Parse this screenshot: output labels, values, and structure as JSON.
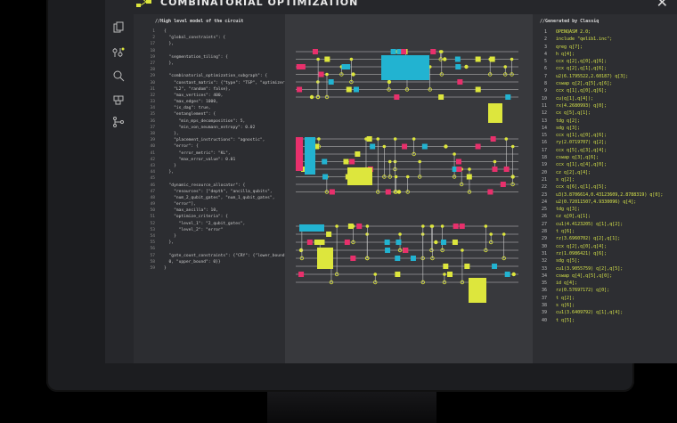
{
  "app": {
    "title": "COMBINATORIAL OPTIMIZATION",
    "close_label": "✕"
  },
  "rail": {
    "icons": [
      "copy-icon",
      "settings-sliders-icon",
      "search-icon",
      "puzzle-icon",
      "branch-icon"
    ]
  },
  "left_pane": {
    "header": "//High level model of the circuit",
    "lines": [
      {
        "n": "1",
        "t": "{"
      },
      {
        "n": "2",
        "t": "  \"global_constraints\": {"
      },
      {
        "n": "17",
        "t": "  },"
      },
      {
        "n": "18",
        "t": ""
      },
      {
        "n": "19",
        "t": "  \"segmentation_tiling\": {"
      },
      {
        "n": "27",
        "t": "  },"
      },
      {
        "n": "28",
        "t": ""
      },
      {
        "n": "29",
        "t": "  \"combinatorial_optimization_subgraph\": {"
      },
      {
        "n": "30",
        "t": "    \"constant_matrix\": {\"type\": \"TSP\", \"optimizer\":"
      },
      {
        "n": "31",
        "t": "    \"L2\", \"random\": false},"
      },
      {
        "n": "32",
        "t": "    \"max_vertices\": 400,"
      },
      {
        "n": "33",
        "t": "    \"max_edges\": 1000,"
      },
      {
        "n": "34",
        "t": "    \"is_dag\": true,"
      },
      {
        "n": "35",
        "t": "    \"entanglement\": {"
      },
      {
        "n": "36",
        "t": "      \"min_mps_decomposition\": 5,"
      },
      {
        "n": "37",
        "t": "      \"min_von_neumann_entropy\": 0.02"
      },
      {
        "n": "38",
        "t": "    },"
      },
      {
        "n": "39",
        "t": "    \"placement_instructions\": \"agnostic\","
      },
      {
        "n": "40",
        "t": "    \"error\": {"
      },
      {
        "n": "41",
        "t": "      \"error_metric\": \"KL\","
      },
      {
        "n": "42",
        "t": "      \"max_error_value\": 0.01"
      },
      {
        "n": "43",
        "t": "    }"
      },
      {
        "n": "44",
        "t": "  },"
      },
      {
        "n": "45",
        "t": ""
      },
      {
        "n": "46",
        "t": "  \"dynamic_resource_allocator\": {"
      },
      {
        "n": "47",
        "t": "    \"resources\": [\"depth\", \"ancilla_qubits\","
      },
      {
        "n": "48",
        "t": "    \"num_2_qubit_gates\", \"num_1_qubit_gates\","
      },
      {
        "n": "49",
        "t": "    \"error\"],"
      },
      {
        "n": "50",
        "t": "    \"max_ancilla\": 10,"
      },
      {
        "n": "51",
        "t": "    \"optimize_criteria\": {"
      },
      {
        "n": "52",
        "t": "      \"level_1\": \"2_qubit_gates\","
      },
      {
        "n": "53",
        "t": "      \"level_2\": \"error\""
      },
      {
        "n": "54",
        "t": "    }"
      },
      {
        "n": "55",
        "t": "  },"
      },
      {
        "n": "56",
        "t": ""
      },
      {
        "n": "57",
        "t": "  \"gate_count_constraints\": {\"CRY\": {\"lower_bound\":"
      },
      {
        "n": "58",
        "t": "  0, \"upper_bound\": 0}}"
      },
      {
        "n": "59",
        "t": "}"
      }
    ]
  },
  "right_pane": {
    "header": "//Generated by Classiq",
    "lines": [
      {
        "n": "1",
        "t": "OPENQASM 2.0;"
      },
      {
        "n": "2",
        "t": "include \"qelib1.inc\";"
      },
      {
        "n": "3",
        "t": "qreg q[7];"
      },
      {
        "n": "4",
        "t": "h q[4];"
      },
      {
        "n": "5",
        "t": "ccx q[2],q[0],q[6];"
      },
      {
        "n": "6",
        "t": "ccx q[2],q[1],q[6];"
      },
      {
        "n": "7",
        "t": "u2(6.1795522,2.60187) q[3];"
      },
      {
        "n": "8",
        "t": "cswap q[2],q[5],q[6];"
      },
      {
        "n": "9",
        "t": "ccx q[1],q[0],q[6];"
      },
      {
        "n": "10",
        "t": "cu(q[1],q[4]);"
      },
      {
        "n": "11",
        "t": "rx(4.2680993) q[0];"
      },
      {
        "n": "12",
        "t": "cx q[5],q[1];"
      },
      {
        "n": "13",
        "t": "tdg q[2];"
      },
      {
        "n": "14",
        "t": "sdg q[3];"
      },
      {
        "n": "15",
        "t": "ccx q[1],q[0],q[6];"
      },
      {
        "n": "16",
        "t": "ry(2.0719707) q[2];"
      },
      {
        "n": "17",
        "t": "ccx q[5],q[3],q[4];"
      },
      {
        "n": "18",
        "t": "cswap q[3],q[6];"
      },
      {
        "n": "19",
        "t": "ccx q[1],q[4],q[0];"
      },
      {
        "n": "20",
        "t": "cz q[2],q[4];"
      },
      {
        "n": "21",
        "t": "s q[2];"
      },
      {
        "n": "22",
        "t": "ccx q[6],q[1],q[5];"
      },
      {
        "n": "23",
        "t": "u3(3.8706614,0.43123609,2.8788319) q[0];"
      },
      {
        "n": "24",
        "t": "u2(0.72011507,4.9330096) q[4];"
      },
      {
        "n": "25",
        "t": "tdg q[3];"
      },
      {
        "n": "26",
        "t": "cz q[0],q[1];"
      },
      {
        "n": "27",
        "t": "cu1(4.4123205) q[1],q[2];"
      },
      {
        "n": "28",
        "t": "t q[6];"
      },
      {
        "n": "29",
        "t": "rz(3.6960702) q[2],q[1];"
      },
      {
        "n": "30",
        "t": "ccx q[2],q[0],q[4];"
      },
      {
        "n": "31",
        "t": "rz(1.0986421) q[6];"
      },
      {
        "n": "32",
        "t": "sdg q[5];"
      },
      {
        "n": "33",
        "t": "cu1(3.9055759) q[2],q[5];"
      },
      {
        "n": "34",
        "t": "cswap q[4],q[5],q[0];"
      },
      {
        "n": "35",
        "t": "id q[4];"
      },
      {
        "n": "36",
        "t": "rz(0.57697172) q[0];"
      },
      {
        "n": "37",
        "t": "t q[2];"
      },
      {
        "n": "38",
        "t": "s q[6];"
      },
      {
        "n": "39",
        "t": "cu1(3.6409792) q[1],q[4];"
      },
      {
        "n": "40",
        "t": "t q[5];"
      }
    ]
  },
  "colors": {
    "yellow": "#dde63d",
    "magenta": "#e8306c",
    "cyan": "#22b3d1",
    "wire": "#c8c8c8",
    "code_yellow": "#d6e34a"
  }
}
